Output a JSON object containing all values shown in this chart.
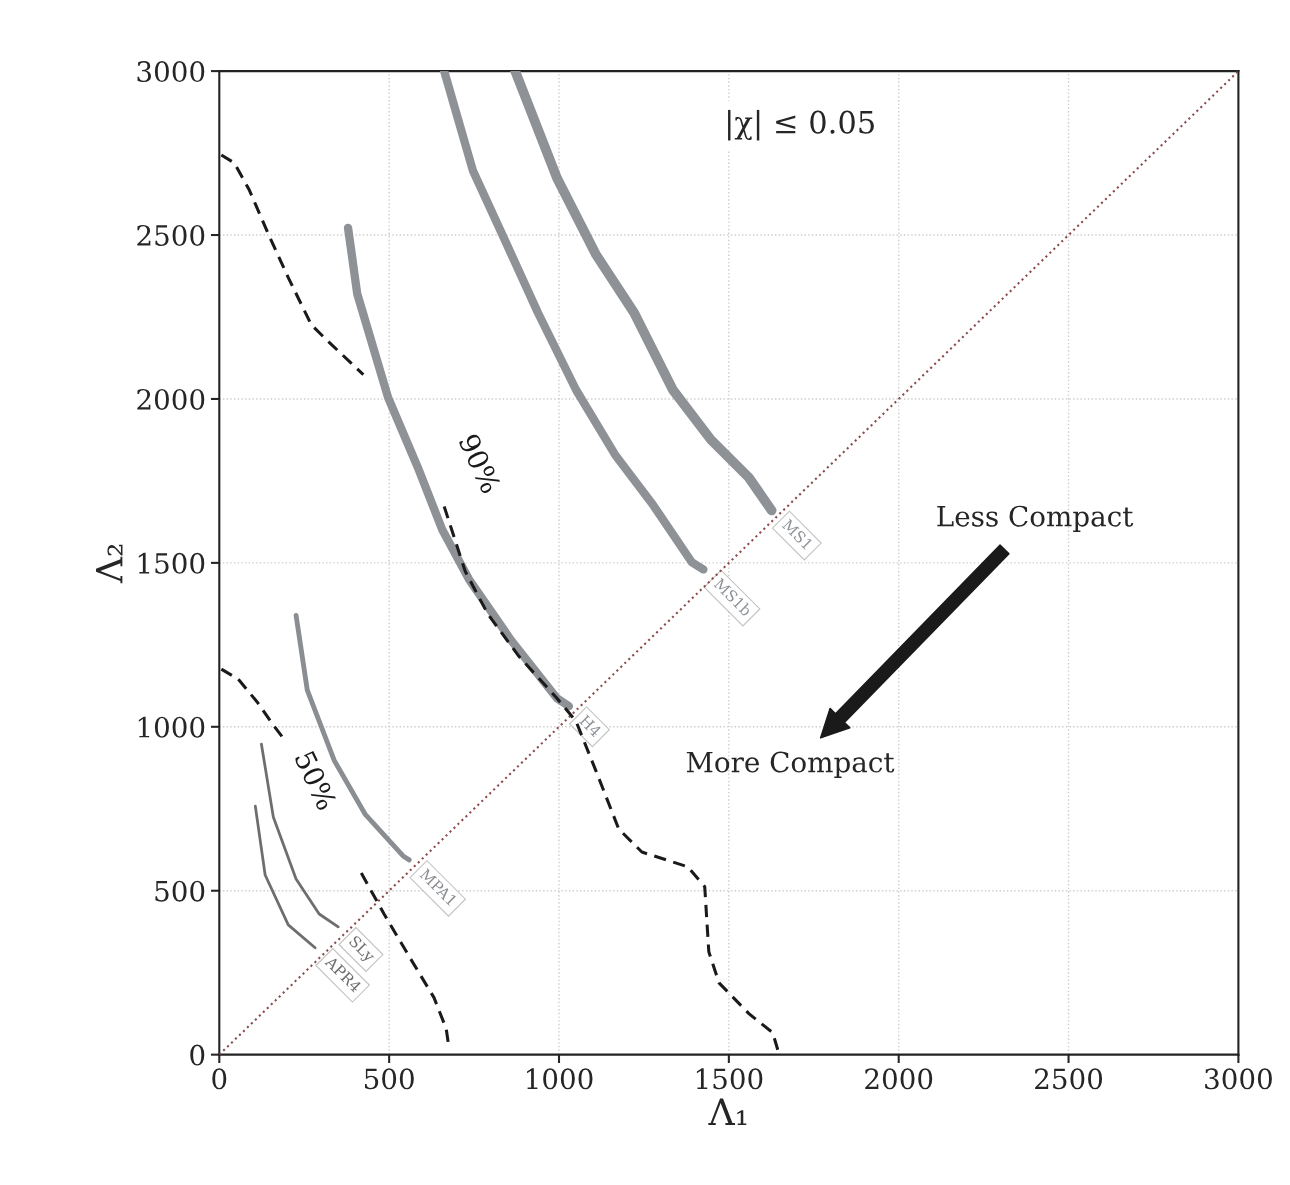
{
  "chart_data": {
    "type": "line",
    "xlabel": "Λ₁",
    "ylabel": "Λ₂",
    "xlim": [
      0,
      3000
    ],
    "ylim": [
      0,
      3000
    ],
    "xticks": [
      0,
      500,
      1000,
      1500,
      2000,
      2500,
      3000
    ],
    "yticks": [
      0,
      500,
      1000,
      1500,
      2000,
      2500,
      3000
    ],
    "grid": true,
    "legend": false,
    "marker": "none",
    "annotations": [
      "|χ| ≤ 0.05",
      "Less Compact",
      "More Compact"
    ],
    "series": [
      {
        "color": "#8b4a4a",
        "line_style": "dotted",
        "x": [
          0,
          3000
        ],
        "values": [
          0,
          3000
        ]
      },
      {
        "name": "MS1",
        "color": "#8e9296",
        "line_style": "solid",
        "x": [
          871,
          994,
          1109,
          1221,
          1335,
          1447,
          1559,
          1626
        ],
        "values": [
          3000,
          2674,
          2440,
          2263,
          2028,
          1876,
          1760,
          1660
        ]
      },
      {
        "name": "MS1b",
        "color": "#8e9296",
        "line_style": "solid",
        "x": [
          662,
          747,
          835,
          938,
          1050,
          1165,
          1276,
          1391,
          1425
        ],
        "values": [
          3000,
          2695,
          2497,
          2263,
          2028,
          1830,
          1678,
          1502,
          1480
        ]
      },
      {
        "name": "H4",
        "color": "#8e9296",
        "line_style": "solid",
        "x": [
          379,
          406,
          497,
          588,
          656,
          735,
          859,
          994,
          1029
        ],
        "values": [
          2522,
          2321,
          2004,
          1782,
          1602,
          1450,
          1264,
          1087,
          1063
        ]
      },
      {
        "name": "MPA1",
        "color": "#8a8d91",
        "line_style": "solid",
        "x": [
          226,
          259,
          338,
          429,
          541,
          559
        ],
        "values": [
          1340,
          1112,
          898,
          734,
          606,
          594
        ]
      },
      {
        "name": "SLy",
        "color": "#6e6e6e",
        "line_style": "solid",
        "x": [
          124,
          159,
          226,
          294,
          350
        ],
        "values": [
          947,
          725,
          536,
          429,
          390
        ]
      },
      {
        "name": "APR4",
        "color": "#6e6e6e",
        "line_style": "solid",
        "x": [
          106,
          135,
          203,
          282
        ],
        "values": [
          758,
          548,
          396,
          326
        ]
      },
      {
        "name": "90%",
        "color": "#1a1a1a",
        "line_style": "dashed",
        "x": [
          6,
          44,
          88,
          147,
          203,
          271,
          315,
          424,
          543,
          662,
          724,
          791,
          882,
          994,
          1050,
          1109,
          1176,
          1244,
          1379,
          1429,
          1441,
          1471,
          1559,
          1629,
          1644
        ],
        "values": [
          2744,
          2720,
          2638,
          2497,
          2370,
          2226,
          2181,
          2074,
          null,
          1672,
          1474,
          1343,
          1215,
          1087,
          1017,
          865,
          688,
          618,
          573,
          512,
          314,
          219,
          125,
          67,
          15
        ]
      },
      {
        "name": "50%",
        "color": "#1a1a1a",
        "line_style": "dashed",
        "x": [
          6,
          56,
          112,
          159,
          191,
          305,
          418,
          485,
          565,
          632,
          668,
          676
        ],
        "values": [
          1176,
          1145,
          1075,
          1005,
          962,
          null,
          554,
          429,
          289,
          174,
          79,
          21
        ]
      }
    ]
  }
}
